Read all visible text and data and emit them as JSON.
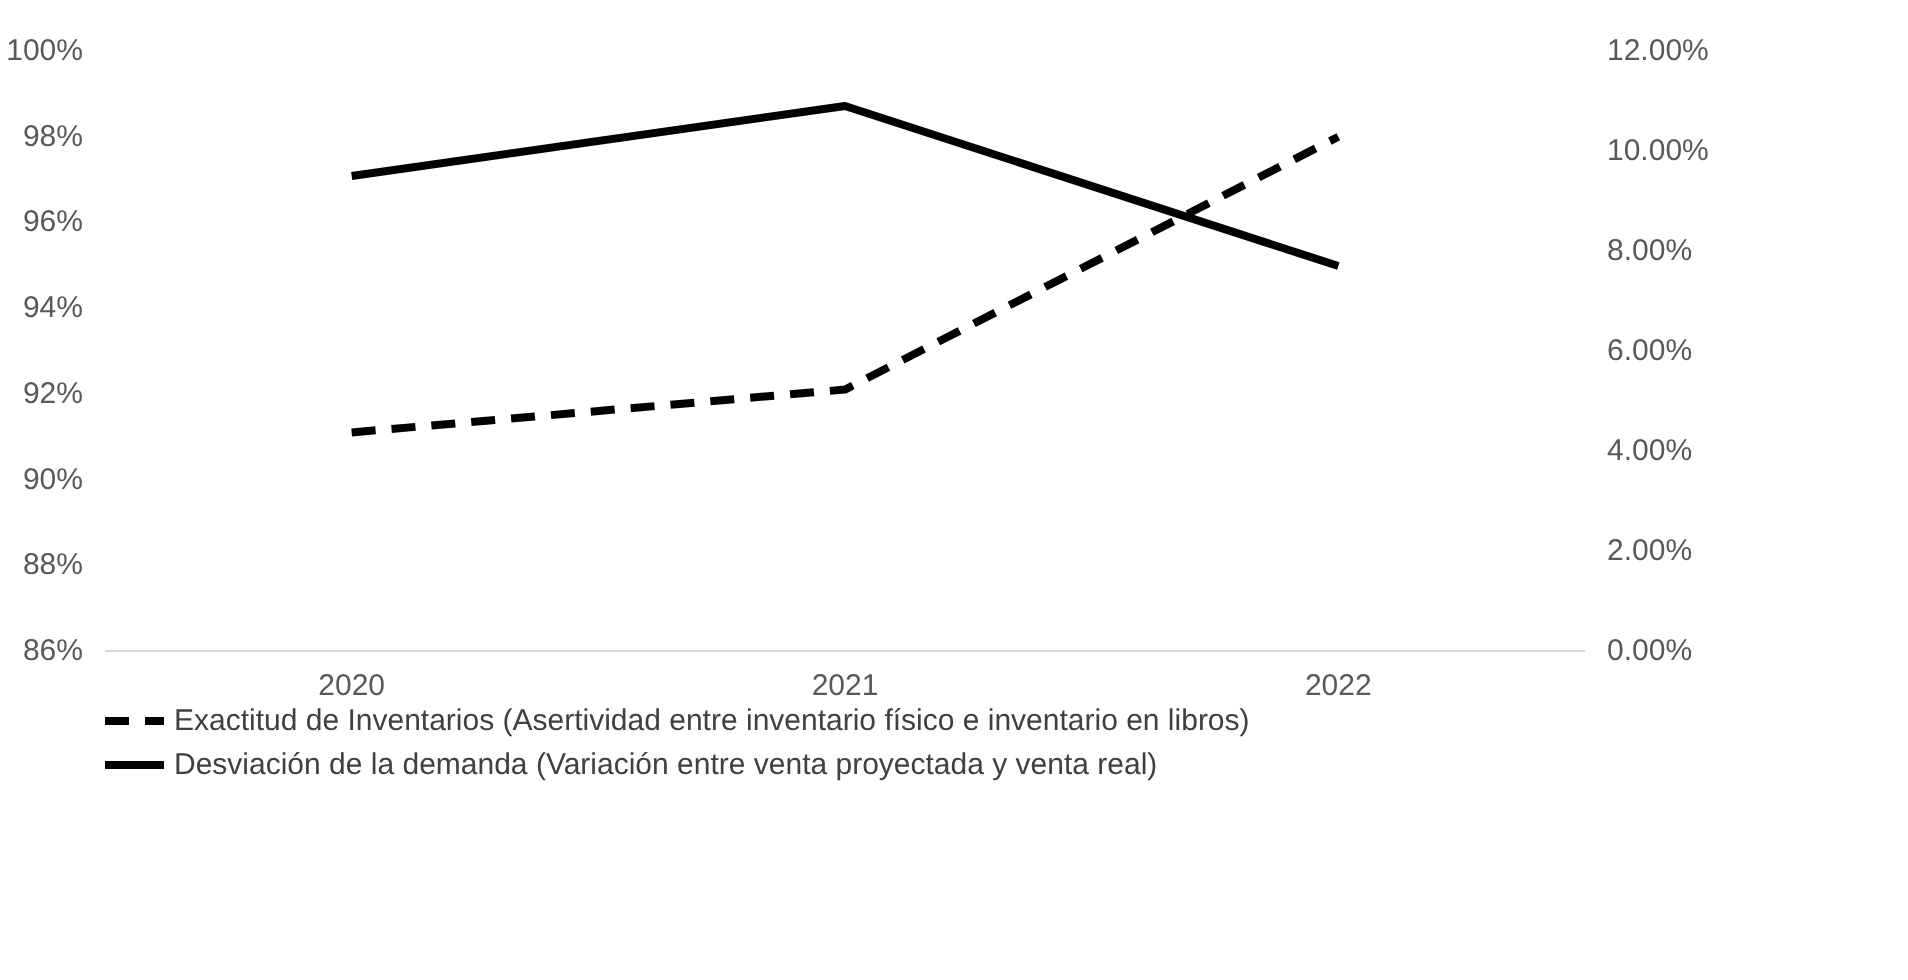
{
  "chart_data": {
    "type": "line",
    "categories": [
      "2020",
      "2021",
      "2022"
    ],
    "series": [
      {
        "name": "Exactitud de Inventarios (Asertividad entre inventario físico e inventario en libros)",
        "color": "#000000",
        "values": [
          91.1,
          92.1,
          98.0
        ],
        "line_style": "dashed"
      },
      {
        "name": "Desviación de la demanda (Variación entre venta proyectada y venta real)",
        "color": "#000000",
        "values": [
          9.5,
          10.9,
          7.7
        ],
        "axis": "y2",
        "line_style": "solid"
      }
    ],
    "ylim": [
      86,
      100
    ],
    "yticks": [
      {
        "value": 86,
        "label": "86%"
      },
      {
        "value": 88,
        "label": "88%"
      },
      {
        "value": 90,
        "label": "90%"
      },
      {
        "value": 92,
        "label": "92%"
      },
      {
        "value": 94,
        "label": "94%"
      },
      {
        "value": 96,
        "label": "96%"
      },
      {
        "value": 98,
        "label": "98%"
      },
      {
        "value": 100,
        "label": "100%"
      }
    ],
    "y2lim": [
      0,
      12
    ],
    "y2ticks": [
      {
        "value": 0,
        "label": "0.00%"
      },
      {
        "value": 2,
        "label": "2.00%"
      },
      {
        "value": 4,
        "label": "4.00%"
      },
      {
        "value": 6,
        "label": "6.00%"
      },
      {
        "value": 8,
        "label": "8.00%"
      },
      {
        "value": 10,
        "label": "10.00%"
      },
      {
        "value": 12,
        "label": "12.00%"
      }
    ],
    "grid": false,
    "legend": "bottom",
    "marker": "none"
  }
}
